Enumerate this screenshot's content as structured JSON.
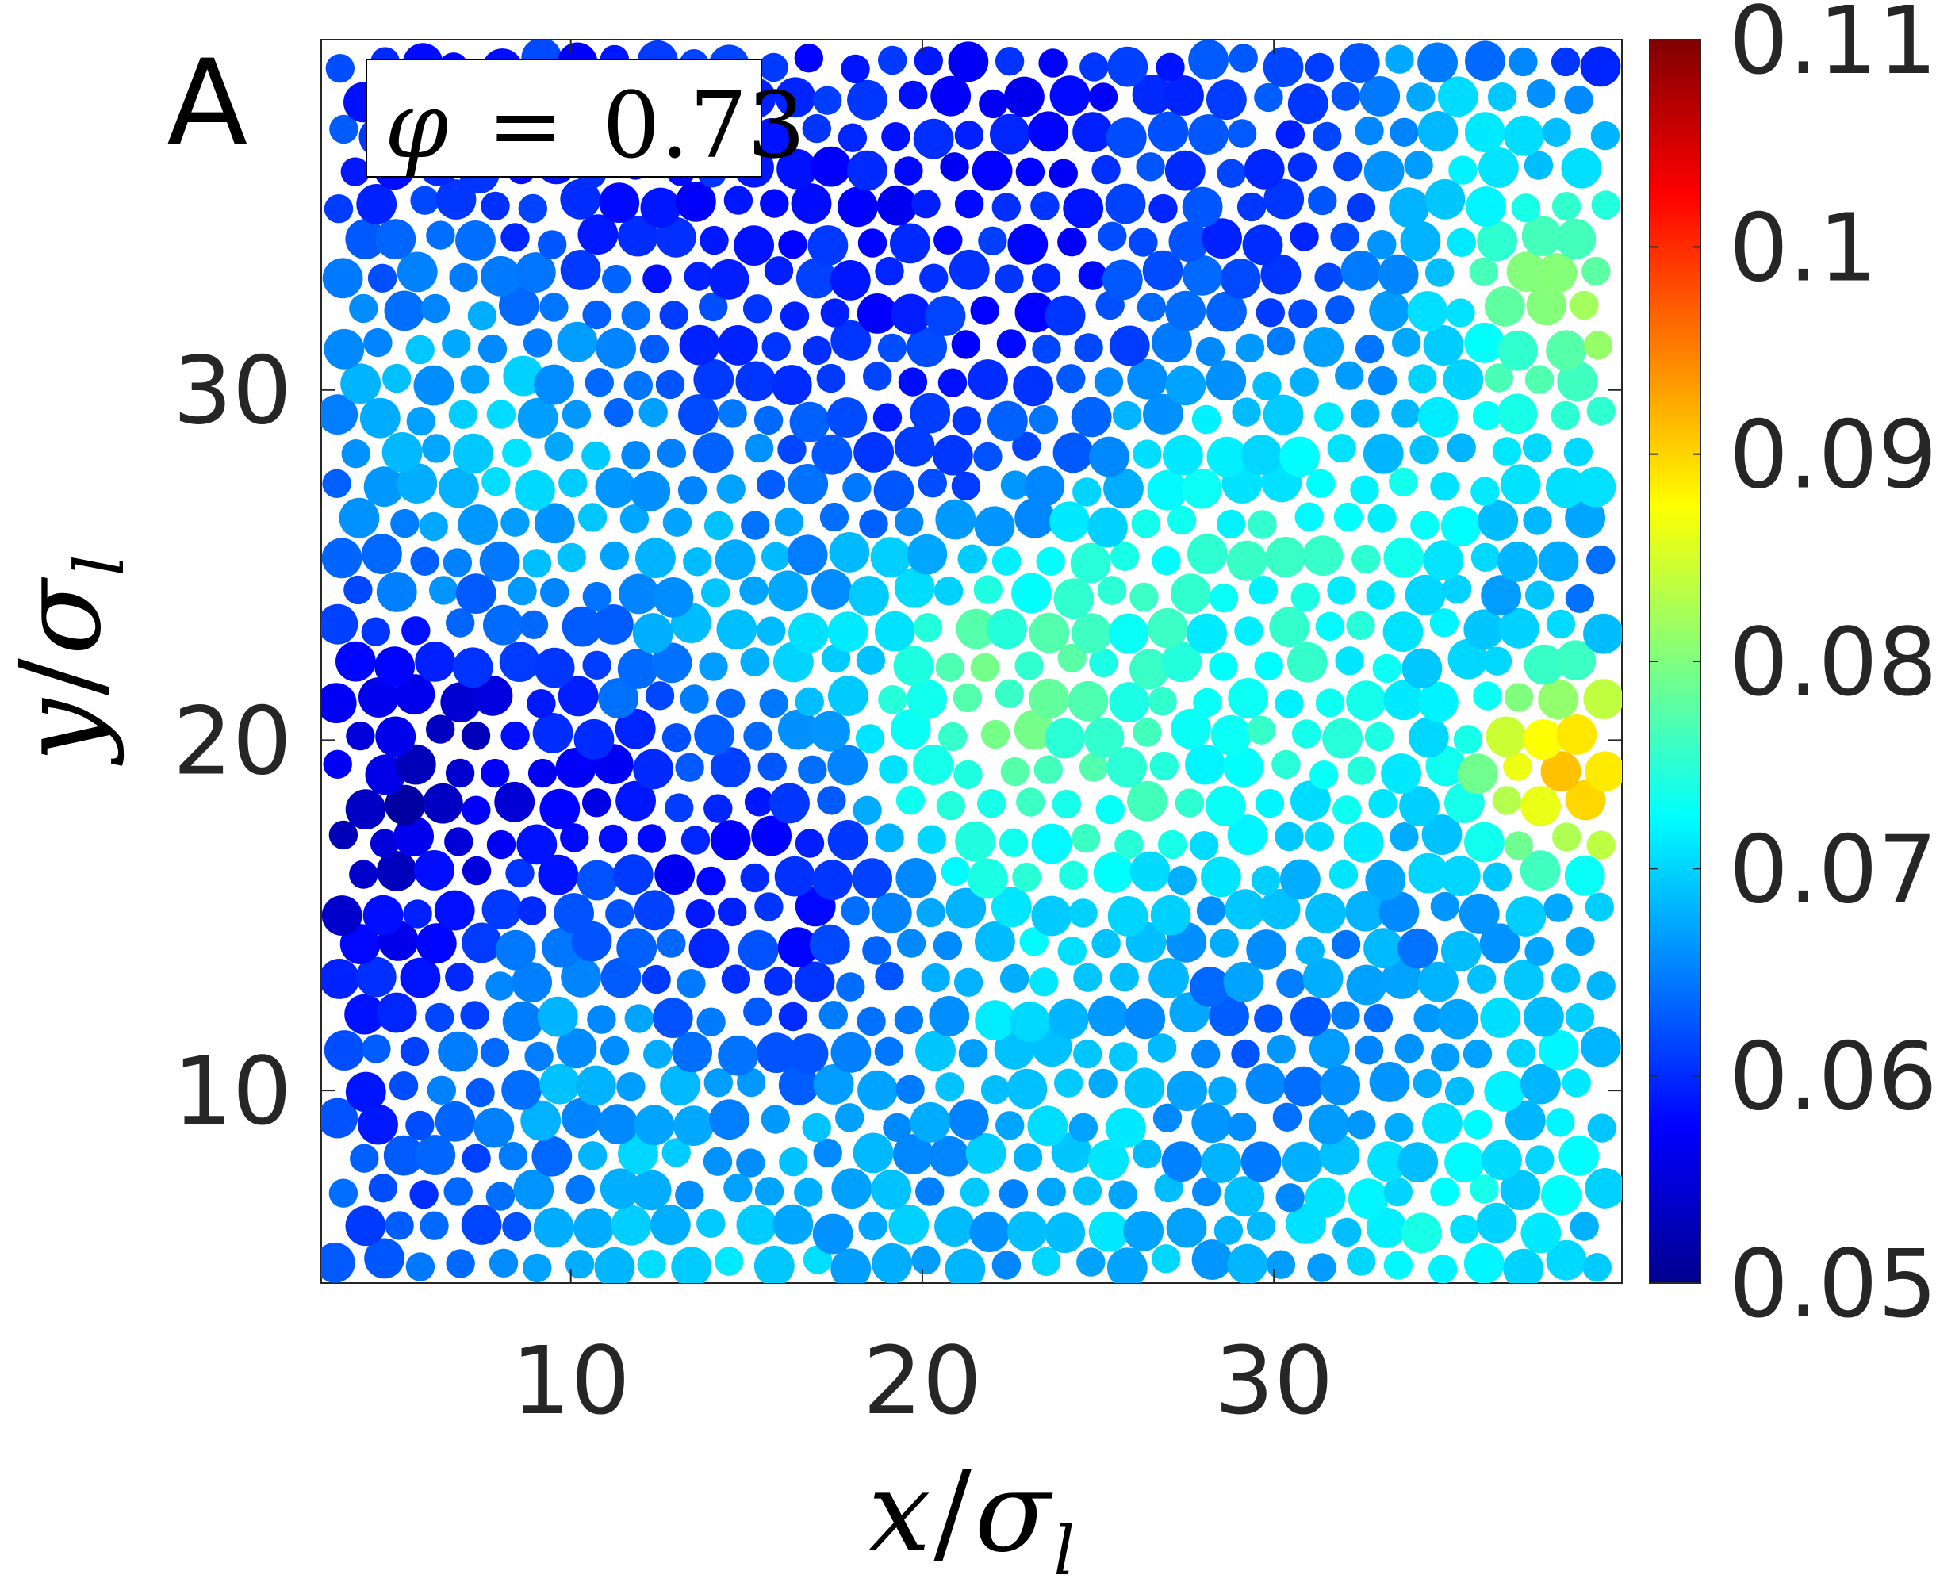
{
  "chart_data": {
    "type": "scatter",
    "panel_label": "A",
    "annotation": {
      "symbol": "φ",
      "operator": "=",
      "value": "0.73"
    },
    "xlabel": {
      "var": "x",
      "slash": "/",
      "sym": "σ",
      "sub": "l"
    },
    "ylabel": {
      "var": "y",
      "slash": "/",
      "sym": "σ",
      "sub": "l"
    },
    "xlim": [
      2.9,
      39.9
    ],
    "ylim": [
      4.5,
      40.0
    ],
    "xticks": [
      10,
      20,
      30
    ],
    "xtick_labels": [
      "10",
      "20",
      "30"
    ],
    "yticks": [
      10,
      20,
      30
    ],
    "ytick_labels": [
      "10",
      "20",
      "30"
    ],
    "colorbar": {
      "colormap": "jet",
      "min": 0.05,
      "max": 0.11,
      "ticks": [
        0.05,
        0.06,
        0.07,
        0.08,
        0.09,
        0.1,
        0.11
      ],
      "tick_labels": [
        "0.05",
        "0.06",
        "0.07",
        "0.08",
        "0.09",
        "0.1",
        "0.11"
      ]
    },
    "particles": {
      "description_of_field": "bidisperse disk packing colored by per-particle value",
      "diameters_sigma": [
        1.0,
        1.4
      ],
      "hotspots": [
        {
          "x": 6.9,
          "y": 17.5,
          "v": 0.05,
          "r": 4.5
        },
        {
          "x": 15.8,
          "y": 14.8,
          "v": 0.055,
          "r": 3.6
        },
        {
          "x": 9.5,
          "y": 35.0,
          "v": 0.058,
          "r": 6.5
        },
        {
          "x": 21.2,
          "y": 31.5,
          "v": 0.058,
          "r": 4.0
        },
        {
          "x": 32.0,
          "y": 34.0,
          "v": 0.058,
          "r": 3.0
        },
        {
          "x": 38.0,
          "y": 38.5,
          "v": 0.056,
          "r": 2.5
        },
        {
          "x": 22.0,
          "y": 38.5,
          "v": 0.057,
          "r": 3.0
        },
        {
          "x": 31.0,
          "y": 12.0,
          "v": 0.06,
          "r": 3.5
        },
        {
          "x": 28.0,
          "y": 14.0,
          "v": 0.06,
          "r": 2.5
        },
        {
          "x": 6.0,
          "y": 8.5,
          "v": 0.06,
          "r": 2.5
        },
        {
          "x": 3.5,
          "y": 27.0,
          "v": 0.061,
          "r": 2.5
        },
        {
          "x": 21.5,
          "y": 9.0,
          "v": 0.061,
          "r": 2.5
        },
        {
          "x": 22.5,
          "y": 20.5,
          "v": 0.085,
          "r": 3.0
        },
        {
          "x": 29.5,
          "y": 16.5,
          "v": 0.08,
          "r": 3.0
        },
        {
          "x": 38.5,
          "y": 19.0,
          "v": 0.097,
          "r": 1.5
        },
        {
          "x": 38.0,
          "y": 33.5,
          "v": 0.088,
          "r": 2.5
        },
        {
          "x": 6.8,
          "y": 28.5,
          "v": 0.079,
          "r": 3.0
        },
        {
          "x": 23.0,
          "y": 11.0,
          "v": 0.077,
          "r": 3.5
        },
        {
          "x": 34.5,
          "y": 7.5,
          "v": 0.076,
          "r": 2.5
        },
        {
          "x": 29.5,
          "y": 27.0,
          "v": 0.077,
          "r": 3.0
        },
        {
          "x": 10.0,
          "y": 12.0,
          "v": 0.075,
          "r": 3.0
        },
        {
          "x": 36.0,
          "y": 37.0,
          "v": 0.078,
          "r": 2.0
        },
        {
          "x": 14.0,
          "y": 24.0,
          "v": 0.071,
          "r": 3.5
        },
        {
          "x": 26.5,
          "y": 22.0,
          "v": 0.073,
          "r": 3.0
        },
        {
          "x": 37.5,
          "y": 11.0,
          "v": 0.071,
          "r": 2.5
        },
        {
          "x": 16.0,
          "y": 6.5,
          "v": 0.07,
          "r": 3.0
        }
      ],
      "base_value": 0.066
    }
  }
}
